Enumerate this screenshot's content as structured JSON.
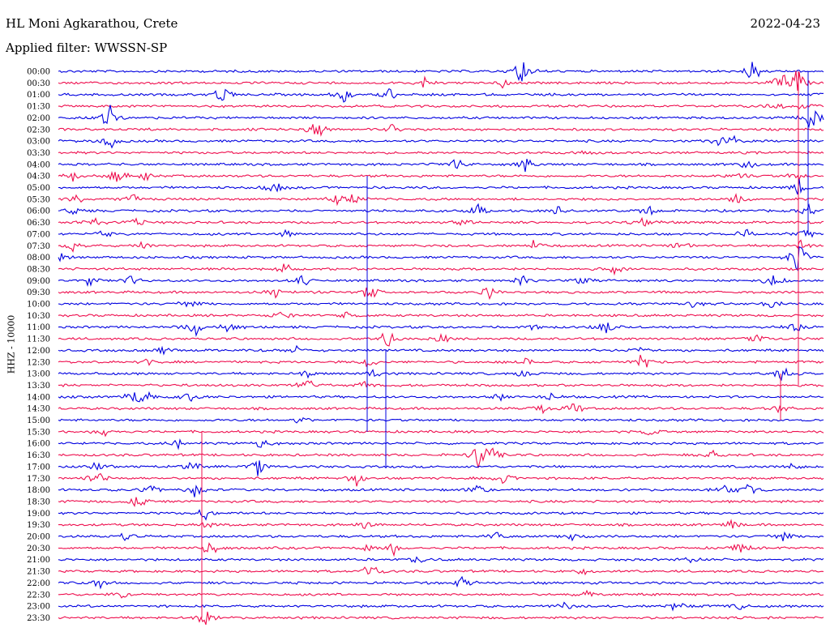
{
  "header": {
    "station": "HL Moni Agkarathou, Crete",
    "date": "2022-04-23",
    "filter": "Applied filter: WWSSN-SP"
  },
  "chart_data": {
    "type": "line",
    "subtype": "helicorder",
    "ylabel": "HHZ - 10000",
    "colors": [
      "#0000e0",
      "#ee0e4e"
    ],
    "rows": [
      {
        "label": "00:00",
        "events": [
          [
            640,
            10
          ],
          [
            648,
            16
          ],
          [
            930,
            18
          ]
        ]
      },
      {
        "label": "00:30",
        "events": [
          [
            523,
            10
          ],
          [
            620,
            6
          ],
          [
            963,
            16
          ],
          [
            985,
            28
          ]
        ]
      },
      {
        "label": "01:00",
        "events": [
          [
            273,
            16
          ],
          [
            423,
            14
          ],
          [
            480,
            12
          ]
        ]
      },
      {
        "label": "01:30",
        "events": [
          [
            960,
            6
          ],
          [
            995,
            10
          ]
        ]
      },
      {
        "label": "02:00",
        "events": [
          [
            133,
            28
          ],
          [
            998,
            16
          ],
          [
            1005,
            10
          ]
        ]
      },
      {
        "label": "02:30",
        "events": [
          [
            390,
            18
          ],
          [
            483,
            8
          ]
        ]
      },
      {
        "label": "03:00",
        "events": [
          [
            135,
            14
          ],
          [
            888,
            10
          ],
          [
            908,
            8
          ]
        ]
      },
      {
        "label": "03:30",
        "events": [
          [
            720,
            5
          ]
        ]
      },
      {
        "label": "04:00",
        "events": [
          [
            563,
            12
          ],
          [
            650,
            14
          ],
          [
            925,
            12
          ]
        ]
      },
      {
        "label": "04:30",
        "events": [
          [
            90,
            8
          ],
          [
            145,
            14
          ],
          [
            180,
            8
          ],
          [
            912,
            8
          ],
          [
            985,
            10
          ]
        ]
      },
      {
        "label": "05:00",
        "events": [
          [
            338,
            12
          ],
          [
            985,
            12
          ]
        ]
      },
      {
        "label": "05:30",
        "events": [
          [
            96,
            8
          ],
          [
            165,
            8
          ],
          [
            415,
            10
          ],
          [
            437,
            8
          ],
          [
            910,
            8
          ]
        ]
      },
      {
        "label": "06:00",
        "events": [
          [
            90,
            8
          ],
          [
            590,
            10
          ],
          [
            690,
            8
          ],
          [
            800,
            8
          ],
          [
            1000,
            10
          ]
        ]
      },
      {
        "label": "06:30",
        "events": [
          [
            115,
            8
          ],
          [
            168,
            8
          ],
          [
            570,
            6
          ],
          [
            795,
            8
          ]
        ]
      },
      {
        "label": "07:00",
        "events": [
          [
            125,
            10
          ],
          [
            350,
            8
          ],
          [
            920,
            8
          ],
          [
            990,
            12
          ]
        ]
      },
      {
        "label": "07:30",
        "events": [
          [
            90,
            8
          ],
          [
            175,
            8
          ],
          [
            660,
            8
          ],
          [
            840,
            8
          ],
          [
            990,
            10
          ]
        ]
      },
      {
        "label": "08:00",
        "events": [
          [
            75,
            8
          ],
          [
            985,
            26
          ]
        ]
      },
      {
        "label": "08:30",
        "events": [
          [
            350,
            10
          ],
          [
            760,
            8
          ]
        ]
      },
      {
        "label": "09:00",
        "events": [
          [
            110,
            8
          ],
          [
            160,
            10
          ],
          [
            372,
            12
          ],
          [
            645,
            8
          ],
          [
            717,
            8
          ],
          [
            952,
            14
          ]
        ]
      },
      {
        "label": "09:30",
        "events": [
          [
            340,
            10
          ],
          [
            455,
            16
          ],
          [
            603,
            10
          ]
        ]
      },
      {
        "label": "10:00",
        "events": [
          [
            233,
            10
          ],
          [
            855,
            10
          ],
          [
            948,
            8
          ]
        ]
      },
      {
        "label": "10:30",
        "events": [
          [
            348,
            8
          ],
          [
            430,
            6
          ]
        ]
      },
      {
        "label": "11:00",
        "events": [
          [
            240,
            14
          ],
          [
            283,
            8
          ],
          [
            660,
            6
          ],
          [
            748,
            12
          ],
          [
            985,
            10
          ]
        ]
      },
      {
        "label": "11:30",
        "events": [
          [
            478,
            14
          ],
          [
            545,
            8
          ],
          [
            935,
            6
          ]
        ]
      },
      {
        "label": "12:00",
        "events": [
          [
            200,
            8
          ],
          [
            368,
            8
          ],
          [
            790,
            8
          ]
        ]
      },
      {
        "label": "12:30",
        "events": [
          [
            180,
            6
          ],
          [
            455,
            10
          ],
          [
            652,
            8
          ],
          [
            793,
            14
          ]
        ]
      },
      {
        "label": "13:00",
        "events": [
          [
            378,
            8
          ],
          [
            462,
            8
          ],
          [
            645,
            8
          ],
          [
            965,
            14
          ]
        ]
      },
      {
        "label": "13:30",
        "events": [
          [
            378,
            12
          ],
          [
            450,
            8
          ]
        ]
      },
      {
        "label": "14:00",
        "events": [
          [
            165,
            12
          ],
          [
            182,
            8
          ],
          [
            233,
            8
          ],
          [
            618,
            6
          ],
          [
            680,
            6
          ]
        ]
      },
      {
        "label": "14:30",
        "events": [
          [
            670,
            8
          ],
          [
            710,
            12
          ],
          [
            963,
            8
          ]
        ]
      },
      {
        "label": "15:00",
        "events": [
          [
            370,
            6
          ]
        ]
      },
      {
        "label": "15:30",
        "events": [
          [
            128,
            8
          ],
          [
            800,
            6
          ]
        ]
      },
      {
        "label": "16:00",
        "events": [
          [
            220,
            8
          ],
          [
            325,
            10
          ]
        ]
      },
      {
        "label": "16:30",
        "events": [
          [
            590,
            18
          ],
          [
            607,
            16
          ],
          [
            880,
            8
          ]
        ]
      },
      {
        "label": "17:00",
        "events": [
          [
            118,
            8
          ],
          [
            237,
            8
          ],
          [
            318,
            12
          ],
          [
            975,
            10
          ]
        ]
      },
      {
        "label": "17:30",
        "events": [
          [
            120,
            16
          ],
          [
            440,
            14
          ],
          [
            620,
            18
          ]
        ]
      },
      {
        "label": "18:00",
        "events": [
          [
            185,
            10
          ],
          [
            240,
            12
          ],
          [
            590,
            12
          ],
          [
            895,
            8
          ],
          [
            925,
            10
          ]
        ]
      },
      {
        "label": "18:30",
        "events": [
          [
            170,
            12
          ]
        ]
      },
      {
        "label": "19:00",
        "events": [
          [
            253,
            12
          ]
        ]
      },
      {
        "label": "19:30",
        "events": [
          [
            258,
            6
          ],
          [
            450,
            6
          ],
          [
            905,
            8
          ]
        ]
      },
      {
        "label": "20:00",
        "events": [
          [
            153,
            8
          ],
          [
            612,
            8
          ],
          [
            705,
            8
          ],
          [
            965,
            12
          ]
        ]
      },
      {
        "label": "20:30",
        "events": [
          [
            260,
            16
          ],
          [
            455,
            10
          ],
          [
            485,
            10
          ],
          [
            913,
            10
          ]
        ]
      },
      {
        "label": "21:00",
        "events": [
          [
            515,
            8
          ],
          [
            855,
            6
          ]
        ]
      },
      {
        "label": "21:30",
        "events": [
          [
            457,
            16
          ],
          [
            720,
            6
          ]
        ]
      },
      {
        "label": "22:00",
        "events": [
          [
            123,
            8
          ],
          [
            570,
            12
          ]
        ]
      },
      {
        "label": "22:30",
        "events": [
          [
            150,
            6
          ],
          [
            725,
            6
          ]
        ]
      },
      {
        "label": "23:00",
        "events": [
          [
            697,
            10
          ],
          [
            835,
            10
          ],
          [
            913,
            6
          ]
        ]
      },
      {
        "label": "23:30",
        "events": [
          [
            253,
            18
          ]
        ]
      }
    ],
    "long_traces": [
      {
        "x": 249,
        "from_row": 31,
        "to_row": 47
      },
      {
        "x": 453,
        "from_row": 9,
        "to_row": 31
      },
      {
        "x": 476,
        "from_row": 24,
        "to_row": 34
      },
      {
        "x": 985,
        "from_row": 0,
        "to_row": 27
      },
      {
        "x": 997,
        "from_row": 0,
        "to_row": 14
      },
      {
        "x": 963,
        "from_row": 26,
        "to_row": 30
      }
    ]
  }
}
